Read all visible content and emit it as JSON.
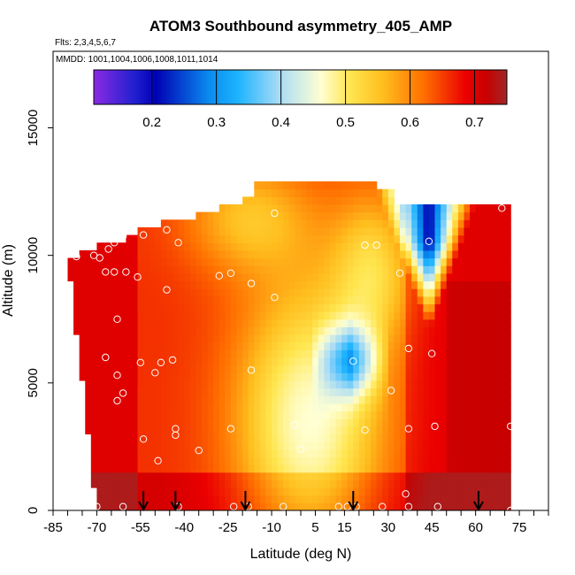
{
  "chart_data": {
    "type": "heatmap",
    "title": "ATOM3 Southbound asymmetry_405_AMP",
    "flights_label": "Flts: 2,3,4,5,6,7",
    "mmdd_label": "MMDD: 1001,1004,1006,1008,1011,1014",
    "xlabel": "Latitude (deg N)",
    "ylabel": "Altitude (m)",
    "xlim": [
      -85,
      85
    ],
    "ylim": [
      0,
      18000
    ],
    "x_ticks": [
      -85,
      -70,
      -55,
      -40,
      -25,
      -10,
      5,
      15,
      30,
      45,
      60,
      75
    ],
    "x_tick_labels": [
      "-85",
      "-70",
      "-55",
      "-40",
      "-25",
      "-10",
      "5",
      "15",
      "30",
      "45",
      "60",
      "75"
    ],
    "y_ticks": [
      0,
      5000,
      10000,
      15000
    ],
    "y_tick_labels": [
      "0",
      "5000",
      "10000",
      "15000"
    ],
    "colorbar": {
      "range": [
        0.11,
        0.75
      ],
      "ticks": [
        0.2,
        0.3,
        0.4,
        0.5,
        0.6,
        0.7
      ],
      "tick_labels": [
        "0.2",
        "0.3",
        "0.4",
        "0.5",
        "0.6",
        "0.7"
      ]
    },
    "arrows_latitude": [
      -54,
      -43,
      -19,
      18,
      61
    ],
    "sample_points": [
      [
        -77,
        9950
      ],
      [
        -71,
        10000
      ],
      [
        -69,
        9900
      ],
      [
        -66,
        10250
      ],
      [
        -64,
        10500
      ],
      [
        -61,
        10750
      ],
      [
        -54,
        10800
      ],
      [
        -46,
        11000
      ],
      [
        -42,
        10500
      ],
      [
        -9,
        11650
      ],
      [
        26,
        10400
      ],
      [
        22,
        10400
      ],
      [
        34,
        9300
      ],
      [
        44,
        10550
      ],
      [
        69,
        11850
      ],
      [
        -67,
        9350
      ],
      [
        -64,
        9350
      ],
      [
        -60,
        9350
      ],
      [
        -56,
        9150
      ],
      [
        -28,
        9200
      ],
      [
        -24,
        9300
      ],
      [
        -46,
        8650
      ],
      [
        -17,
        8900
      ],
      [
        -9,
        8350
      ],
      [
        -63,
        7500
      ],
      [
        -67,
        6000
      ],
      [
        -55,
        5800
      ],
      [
        -48,
        5800
      ],
      [
        -44,
        5900
      ],
      [
        -50,
        5400
      ],
      [
        -63,
        5300
      ],
      [
        -61,
        4600
      ],
      [
        -63,
        4300
      ],
      [
        -17,
        5500
      ],
      [
        18,
        5850
      ],
      [
        37,
        6350
      ],
      [
        45,
        6150
      ],
      [
        31,
        4700
      ],
      [
        -43,
        3200
      ],
      [
        -24,
        3200
      ],
      [
        -54,
        2800
      ],
      [
        -43,
        2950
      ],
      [
        -35,
        2350
      ],
      [
        -49,
        1950
      ],
      [
        0,
        2400
      ],
      [
        -2,
        3350
      ],
      [
        22,
        3150
      ],
      [
        37,
        3200
      ],
      [
        46,
        3300
      ],
      [
        72,
        3300
      ],
      [
        -70,
        150
      ],
      [
        -61,
        150
      ],
      [
        -42,
        150
      ],
      [
        -23,
        150
      ],
      [
        -18,
        150
      ],
      [
        -6,
        150
      ],
      [
        13,
        150
      ],
      [
        16,
        150
      ],
      [
        19,
        150
      ],
      [
        28,
        150
      ],
      [
        37,
        150
      ],
      [
        47,
        150
      ],
      [
        72,
        0
      ],
      [
        36,
        650
      ]
    ]
  }
}
